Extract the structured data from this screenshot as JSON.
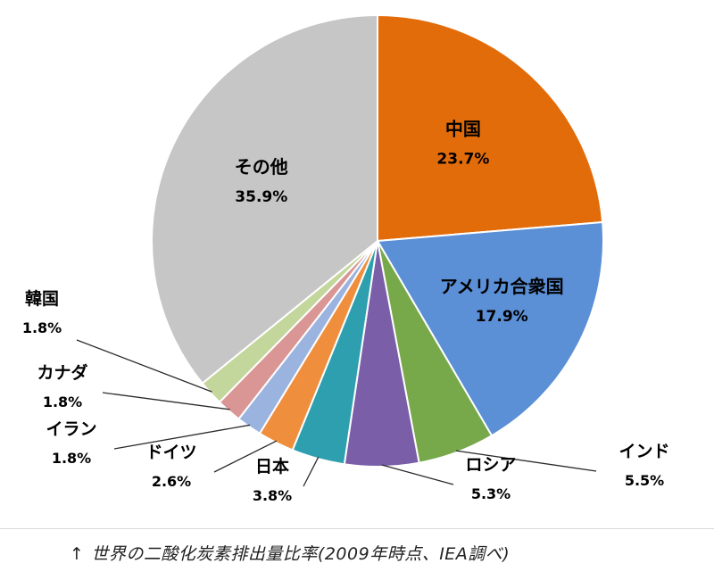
{
  "chart_data": {
    "type": "pie",
    "title": "世界の二酸化炭素排出量比率(2009年時点、IEA調べ)",
    "start": "12 o'clock",
    "direction": "clockwise",
    "slices": [
      {
        "label": "中国",
        "value": 23.7,
        "value_label": "23.7%",
        "color": "#e36c0a"
      },
      {
        "label": "アメリカ合衆国",
        "value": 17.9,
        "value_label": "17.9%",
        "color": "#5b8fd6"
      },
      {
        "label": "インド",
        "value": 5.5,
        "value_label": "5.5%",
        "color": "#77a94b"
      },
      {
        "label": "ロシア",
        "value": 5.3,
        "value_label": "5.3%",
        "color": "#7a5ea8"
      },
      {
        "label": "日本",
        "value": 3.8,
        "value_label": "3.8%",
        "color": "#2e9fae"
      },
      {
        "label": "ドイツ",
        "value": 2.6,
        "value_label": "2.6%",
        "color": "#ef8f3e"
      },
      {
        "label": "イラン",
        "value": 1.8,
        "value_label": "1.8%",
        "color": "#9bb3df"
      },
      {
        "label": "カナダ",
        "value": 1.8,
        "value_label": "1.8%",
        "color": "#d99694"
      },
      {
        "label": "韓国",
        "value": 1.8,
        "value_label": "1.8%",
        "color": "#c3d69b"
      },
      {
        "label": "その他",
        "value": 35.9,
        "value_label": "35.9%",
        "color": "#c6c6c6"
      }
    ]
  },
  "caption": {
    "arrow": "↑",
    "text": "世界の二酸化炭素排出量比率(2009年時点、IEA調べ)"
  }
}
